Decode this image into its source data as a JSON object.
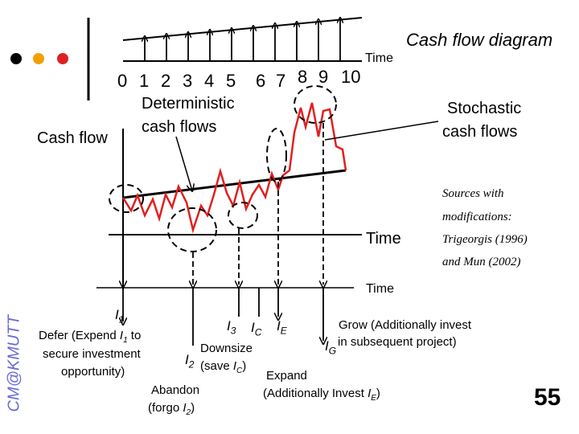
{
  "header": {
    "title": "Cash flow diagram",
    "dot_colors": [
      "#000000",
      "#f2a000",
      "#e02020"
    ],
    "line_color": "#e02020"
  },
  "top_axis": {
    "time_label": "Time",
    "ticks": [
      "0",
      "1",
      "2",
      "3",
      "4",
      "5",
      "6",
      "7",
      "8",
      "9",
      "10"
    ]
  },
  "labels": {
    "deterministic_l1": "Deterministic",
    "deterministic_l2": "cash flows",
    "stochastic_l1": "Stochastic",
    "stochastic_l2": "cash flows",
    "cash_flow": "Cash flow",
    "middle_time": "Time",
    "bottom_time": "Time"
  },
  "sources": {
    "l1": "Sources with",
    "l2": "modifications:",
    "l3": "Trigeorgis (1996)",
    "l4": "and Mun (2002)"
  },
  "options": {
    "i1_symbol": "I",
    "i1_sub": "1",
    "defer_l1": "Defer (Expend ",
    "defer_sym": "I",
    "defer_sub": "1",
    "defer_to": " to",
    "defer_l2": "secure investment",
    "defer_l3": "opportunity)",
    "i2_symbol": "I",
    "i2_sub": "2",
    "abandon_l1": "Abandon",
    "abandon_l2_pre": "(forgo ",
    "abandon_l2_sym": "I",
    "abandon_l2_sub": "2",
    "abandon_l2_post": ")",
    "i3_symbol": "I",
    "i3_sub": "3",
    "ic_symbol": "I",
    "ic_sub": "C",
    "downsize_l1": "Downsize",
    "downsize_l2_pre": "(save ",
    "downsize_l2_sym": "I",
    "downsize_l2_sub": "C",
    "downsize_l2_post": ")",
    "ie_symbol": "I",
    "ie_sub": "E",
    "expand_l1": "Expand",
    "expand_l2_pre": "(Additionally Invest ",
    "expand_l2_sym": "I",
    "expand_l2_sub": "E",
    "expand_l2_post": ")",
    "ig_symbol": "I",
    "ig_sub": "G",
    "grow_l1": "Grow (Additionally invest",
    "grow_l2": "in subsequent project)"
  },
  "footer": {
    "watermark": "CM@KMUTT",
    "page_number": "55"
  }
}
